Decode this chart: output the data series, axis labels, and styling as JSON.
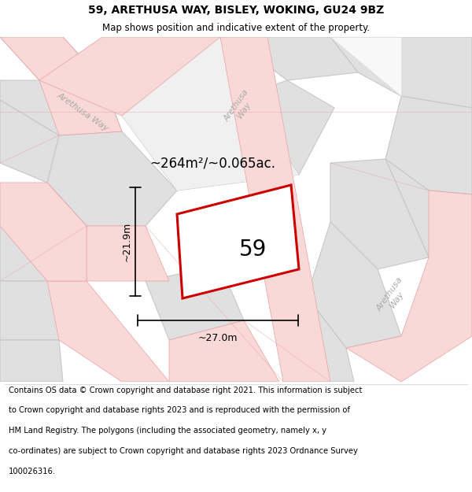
{
  "title": "59, ARETHUSA WAY, BISLEY, WOKING, GU24 9BZ",
  "subtitle": "Map shows position and indicative extent of the property.",
  "footer_lines": [
    "Contains OS data © Crown copyright and database right 2021. This information is subject",
    "to Crown copyright and database rights 2023 and is reproduced with the permission of",
    "HM Land Registry. The polygons (including the associated geometry, namely x, y",
    "co-ordinates) are subject to Crown copyright and database rights 2023 Ordnance Survey",
    "100026316."
  ],
  "bg_color": "#eeeeee",
  "road_fill": "#f9d8d8",
  "road_edge": "#e8a0a0",
  "block_fill": "#e0e0e0",
  "block_edge": "#c8c8c8",
  "plot_color": "#cc0000",
  "plot_label": "59",
  "area_label": "~264m²/~0.065ac.",
  "dim_width_label": "~27.0m",
  "dim_height_label": "~21.9m",
  "street_color": "#aaaaaa",
  "title_fontsize": 10,
  "subtitle_fontsize": 8.5,
  "area_fontsize": 12,
  "plot_label_fontsize": 20,
  "dim_fontsize": 9,
  "street_fontsize": 8,
  "footer_fontsize": 7.2
}
